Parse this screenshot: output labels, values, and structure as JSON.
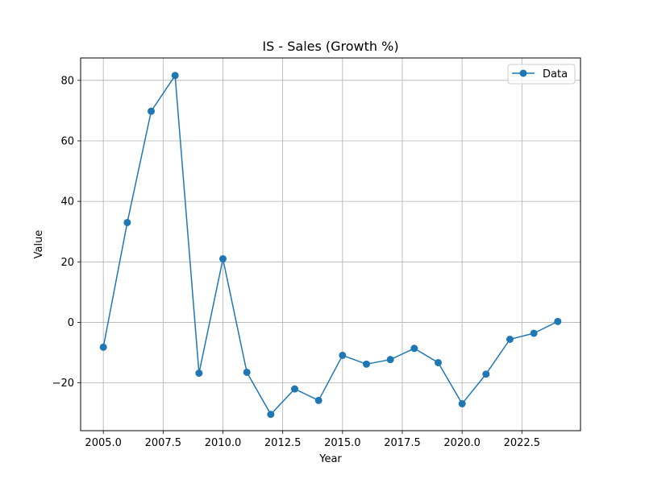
{
  "chart_data": {
    "type": "line",
    "title": "IS - Sales (Growth %)",
    "xlabel": "Year",
    "ylabel": "Value",
    "xlim": [
      2004.05,
      2024.95
    ],
    "ylim": [
      -35.8,
      87.4
    ],
    "xticks": [
      2005.0,
      2007.5,
      2010.0,
      2012.5,
      2015.0,
      2017.5,
      2020.0,
      2022.5
    ],
    "xtick_labels": [
      "2005.0",
      "2007.5",
      "2010.0",
      "2012.5",
      "2015.0",
      "2017.5",
      "2020.0",
      "2022.5"
    ],
    "yticks": [
      -20,
      0,
      20,
      40,
      60,
      80
    ],
    "ytick_labels": [
      "−20",
      "0",
      "20",
      "40",
      "60",
      "80"
    ],
    "grid": true,
    "legend": "top-right",
    "color": "#1f77b4",
    "series": [
      {
        "name": "Data",
        "x": [
          2005,
          2006,
          2007,
          2008,
          2009,
          2010,
          2011,
          2012,
          2013,
          2014,
          2015,
          2016,
          2017,
          2018,
          2019,
          2020,
          2021,
          2022,
          2023,
          2024
        ],
        "values": [
          -8.2,
          33.0,
          69.8,
          81.6,
          -16.8,
          21.0,
          -16.5,
          -30.4,
          -22.0,
          -25.8,
          -10.9,
          -13.8,
          -12.3,
          -8.6,
          -13.3,
          -26.9,
          -17.1,
          -5.6,
          -3.6,
          0.3
        ]
      }
    ]
  }
}
